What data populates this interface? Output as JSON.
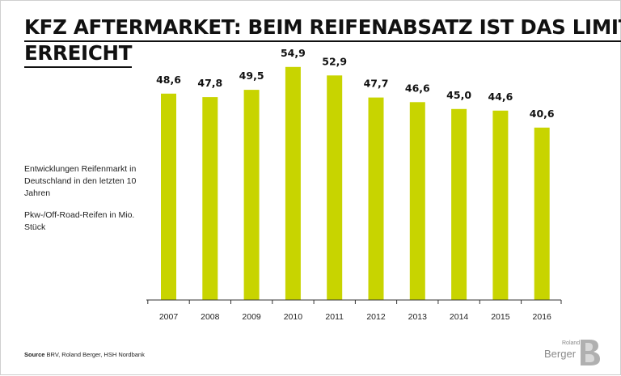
{
  "title": {
    "line1": "KFZ AFTERMARKET: BEIM REIFENABSATZ IST DAS LIMIT",
    "line2": "ERREICHT"
  },
  "description": {
    "line1": "Entwicklungen Reifenmarkt in Deutschland in den letzten 10 Jahren",
    "line2": "Pkw-/Off-Road-Reifen in Mio. Stück"
  },
  "source": {
    "label": "Source",
    "text": "BRV, Roland Berger, HSH Nordbank"
  },
  "logo": {
    "small": "Roland",
    "big": "Berger"
  },
  "chart_data": {
    "type": "bar",
    "categories": [
      "2007",
      "2008",
      "2009",
      "2010",
      "2011",
      "2012",
      "2013",
      "2014",
      "2015",
      "2016"
    ],
    "values": [
      48.6,
      47.8,
      49.5,
      54.9,
      52.9,
      47.7,
      46.6,
      45.0,
      44.6,
      40.6
    ],
    "value_labels": [
      "48,6",
      "47,8",
      "49,5",
      "54,9",
      "52,9",
      "47,7",
      "46,6",
      "45,0",
      "44,6",
      "40,6"
    ],
    "ylim": [
      0,
      56
    ],
    "bar_color": "#c8d400",
    "grid": false
  }
}
